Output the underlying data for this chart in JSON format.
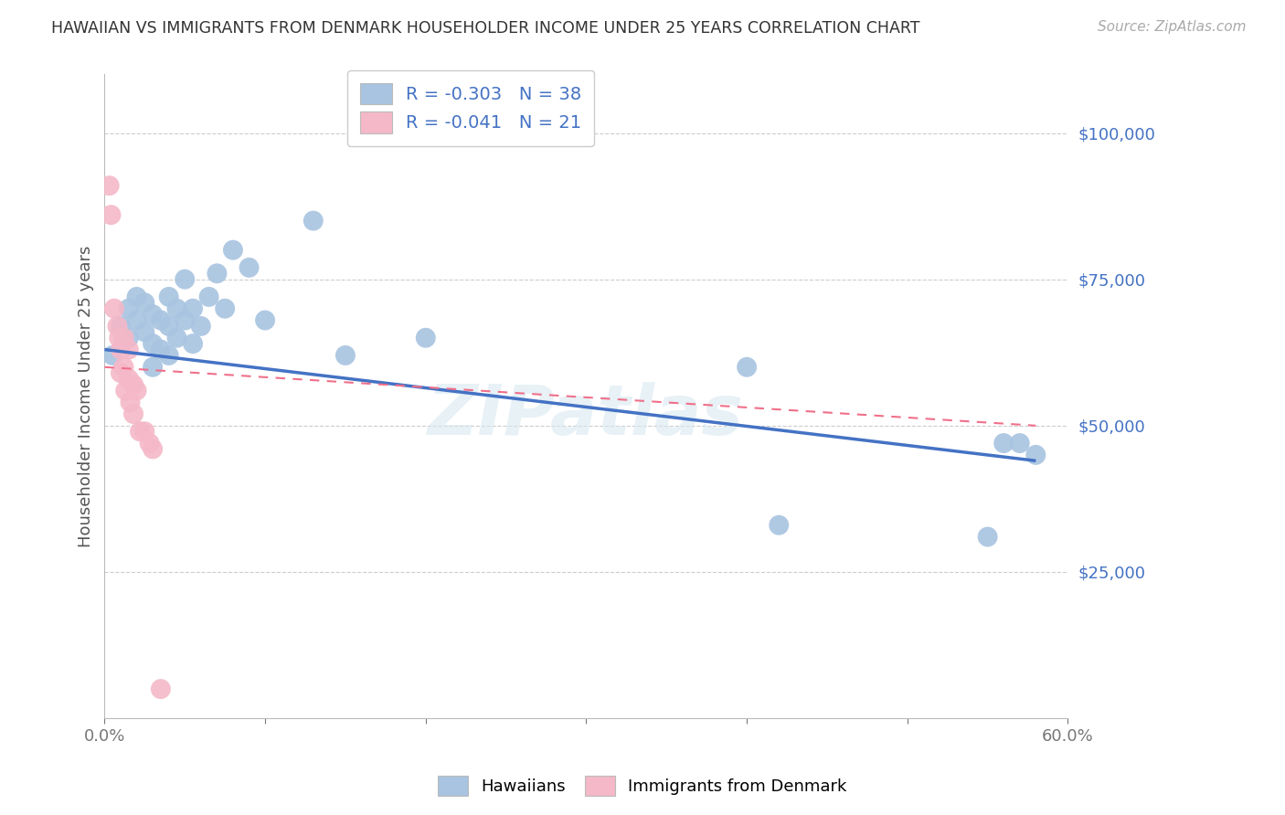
{
  "title": "HAWAIIAN VS IMMIGRANTS FROM DENMARK HOUSEHOLDER INCOME UNDER 25 YEARS CORRELATION CHART",
  "source": "Source: ZipAtlas.com",
  "ylabel": "Householder Income Under 25 years",
  "ytick_values": [
    25000,
    50000,
    75000,
    100000
  ],
  "ymin": 0,
  "ymax": 110000,
  "xmin": 0.0,
  "xmax": 0.6,
  "watermark": "ZIPatlas",
  "legend_label1": "Hawaiians",
  "legend_label2": "Immigrants from Denmark",
  "hawaiian_color": "#a8c4e0",
  "denmark_color": "#f4b8c8",
  "hawaiian_line_color": "#4472c4",
  "denmark_line_color": "#f0708a",
  "hawaiian_scatter_x": [
    0.005,
    0.01,
    0.015,
    0.015,
    0.02,
    0.02,
    0.025,
    0.025,
    0.03,
    0.03,
    0.03,
    0.035,
    0.035,
    0.04,
    0.04,
    0.04,
    0.045,
    0.045,
    0.05,
    0.05,
    0.055,
    0.055,
    0.06,
    0.065,
    0.07,
    0.075,
    0.08,
    0.09,
    0.1,
    0.13,
    0.15,
    0.2,
    0.4,
    0.42,
    0.55,
    0.56,
    0.57,
    0.58
  ],
  "hawaiian_scatter_y": [
    62000,
    67000,
    70000,
    65000,
    72000,
    68000,
    71000,
    66000,
    69000,
    64000,
    60000,
    68000,
    63000,
    72000,
    67000,
    62000,
    70000,
    65000,
    75000,
    68000,
    70000,
    64000,
    67000,
    72000,
    76000,
    70000,
    80000,
    77000,
    68000,
    85000,
    62000,
    65000,
    60000,
    33000,
    31000,
    47000,
    47000,
    45000
  ],
  "denmark_scatter_x": [
    0.003,
    0.004,
    0.006,
    0.008,
    0.009,
    0.01,
    0.01,
    0.012,
    0.012,
    0.013,
    0.015,
    0.015,
    0.016,
    0.018,
    0.018,
    0.02,
    0.022,
    0.025,
    0.028,
    0.03,
    0.035
  ],
  "denmark_scatter_y": [
    91000,
    86000,
    70000,
    67000,
    65000,
    63000,
    59000,
    65000,
    60000,
    56000,
    63000,
    58000,
    54000,
    57000,
    52000,
    56000,
    49000,
    49000,
    47000,
    46000,
    5000
  ],
  "r_hawaiian": -0.303,
  "r_denmark": -0.041,
  "n_hawaiian": 38,
  "n_denmark": 21,
  "hawaii_line_x": [
    0.0,
    0.58
  ],
  "hawaii_line_y": [
    63000,
    44000
  ],
  "denmark_line_x": [
    0.0,
    0.58
  ],
  "denmark_line_y": [
    60000,
    50000
  ]
}
